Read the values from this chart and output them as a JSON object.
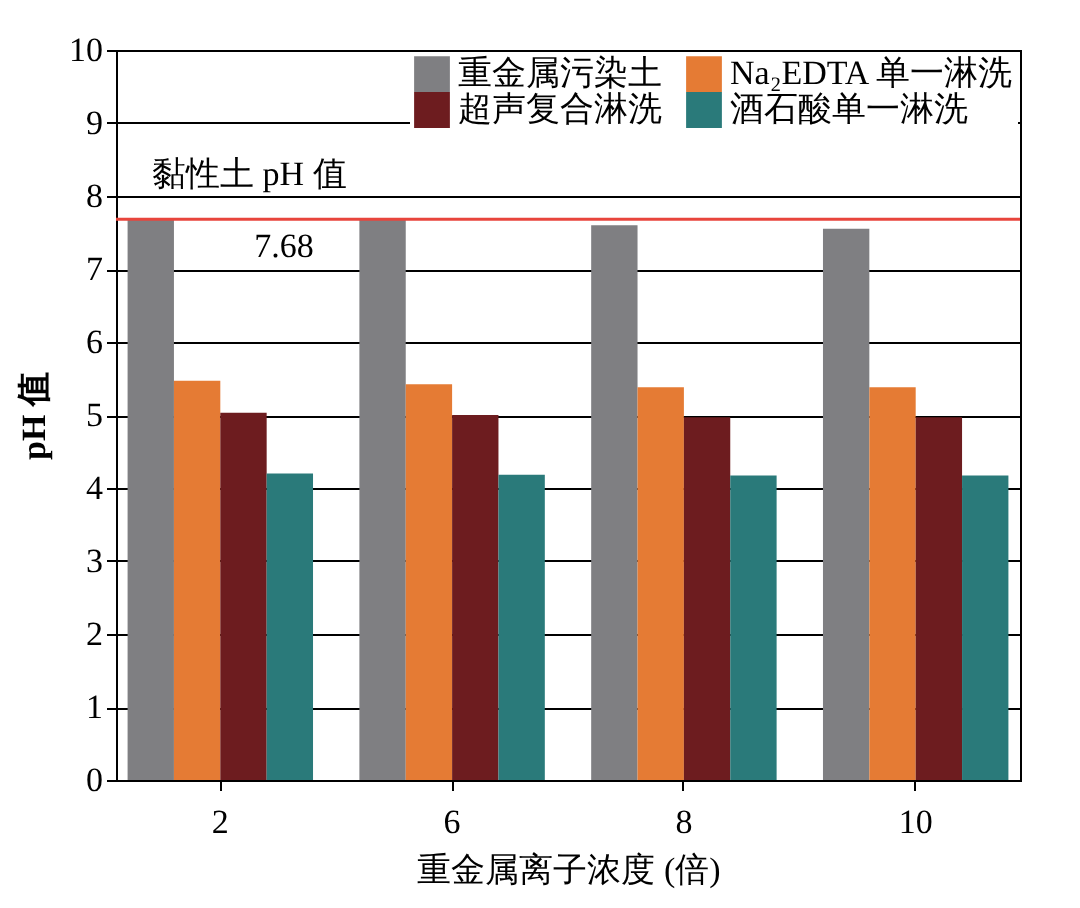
{
  "chart_data": {
    "type": "bar",
    "xlabel": "重金属离子浓度 (倍)",
    "ylabel": "pH 值",
    "categories": [
      "2",
      "6",
      "8",
      "10"
    ],
    "series": [
      {
        "name": "重金属污染土",
        "color": "#7f7f82",
        "values": [
          7.68,
          7.68,
          7.6,
          7.55
        ]
      },
      {
        "name": "Na₂EDTA 单一淋洗",
        "color": "#e57b34",
        "values": [
          5.47,
          5.42,
          5.38,
          5.38
        ]
      },
      {
        "name": "超声复合淋洗",
        "color": "#6d1c1f",
        "values": [
          5.03,
          5.0,
          4.97,
          4.97
        ]
      },
      {
        "name": "酒石酸单一淋洗",
        "color": "#2a7a7a",
        "values": [
          4.2,
          4.18,
          4.17,
          4.17
        ]
      }
    ],
    "ylim": [
      0,
      10
    ],
    "yticks": [
      0,
      1,
      2,
      3,
      4,
      5,
      6,
      7,
      8,
      9,
      10
    ],
    "grid": "y",
    "legend": "top right",
    "ref_lines": [
      {
        "axis": "y",
        "value": 7.68,
        "label": "黏性土 pH 值",
        "color": "#e8453c"
      }
    ],
    "annotations": [
      "7.68"
    ]
  }
}
